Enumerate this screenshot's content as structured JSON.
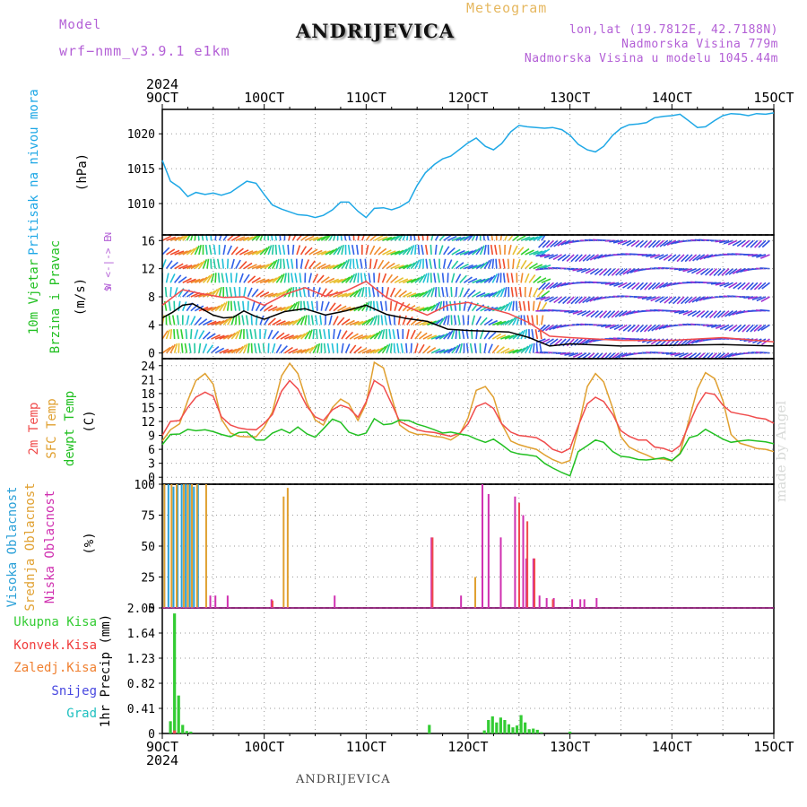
{
  "header": {
    "model_label": "Model",
    "model_name": "wrf−nmm_v3.9.1  e1km",
    "title": "ANDRIJEVICA",
    "meteogram_label": "Meteogram",
    "lonlat": "lon,lat (19.7812E, 42.7188N)",
    "elevation": "Nadmorska Visina 779m",
    "model_elevation": "Nadmorska Visina u modelu 1045.44m"
  },
  "footer": {
    "station": "ANDRIJEVICA",
    "credit": "made by Angel"
  },
  "colors": {
    "pressure": "#1fa8e6",
    "wind_label": "#22c022",
    "temp2m": "#f04c4c",
    "sfc": "#e0a030",
    "dew": "#22c022",
    "high_cloud": "#2aa0d8",
    "mid_cloud": "#e0a030",
    "low_cloud": "#d030b0",
    "precip": "#33cc33",
    "conv": "#f03c3c",
    "freezing": "#f08030",
    "snow": "#4848e0",
    "hail": "#20c0c0",
    "arrow_text": "#b35fd6"
  },
  "x_axis": {
    "top_year": "2024",
    "bottom_year": "2024",
    "ticks": [
      "9OCT",
      "10OCT",
      "11OCT",
      "12OCT",
      "13OCT",
      "14OCT",
      "15OCT"
    ],
    "range_days": [
      9,
      15
    ]
  },
  "chart_data": [
    {
      "type": "line",
      "title": "",
      "ylabel_main": "Pritisak na nivou mora",
      "ylabel_unit": "(hPa)",
      "ylim": [
        1005.5,
        1023.5
      ],
      "yticks": [
        1010,
        1015,
        1020
      ],
      "grid": true,
      "series": [
        {
          "name": "Pritisak na nivou mora",
          "color": "#1fa8e6",
          "x": [
            9.0,
            9.08,
            9.17,
            9.25,
            9.33,
            9.42,
            9.5,
            9.58,
            9.67,
            9.75,
            9.83,
            9.92,
            10.0,
            10.08,
            10.17,
            10.25,
            10.33,
            10.42,
            10.5,
            10.58,
            10.67,
            10.75,
            10.83,
            10.92,
            11.0,
            11.08,
            11.17,
            11.25,
            11.33,
            11.42,
            11.5,
            11.58,
            11.67,
            11.75,
            11.83,
            11.92,
            12.0,
            12.08,
            12.17,
            12.25,
            12.33,
            12.42,
            12.5,
            12.58,
            12.67,
            12.75,
            12.83,
            12.92,
            13.0,
            13.08,
            13.17,
            13.25,
            13.33,
            13.42,
            13.5,
            13.58,
            13.67,
            13.75,
            13.83,
            13.92,
            14.0,
            14.08,
            14.17,
            14.25,
            14.33,
            14.42,
            14.5,
            14.58,
            14.67,
            14.75,
            14.83,
            14.92,
            15.0
          ],
          "y": [
            1016.2,
            1013.2,
            1012.3,
            1011.0,
            1011.6,
            1011.3,
            1011.5,
            1011.2,
            1011.6,
            1012.4,
            1013.2,
            1012.9,
            1011.3,
            1009.8,
            1009.2,
            1008.8,
            1008.4,
            1008.3,
            1008.0,
            1008.3,
            1009.1,
            1010.2,
            1010.2,
            1008.9,
            1008.0,
            1009.3,
            1009.4,
            1009.1,
            1009.5,
            1010.3,
            1012.6,
            1014.4,
            1015.6,
            1016.4,
            1016.8,
            1017.8,
            1018.7,
            1019.4,
            1018.2,
            1017.7,
            1018.6,
            1020.3,
            1021.2,
            1021.0,
            1020.9,
            1020.8,
            1020.9,
            1020.6,
            1019.8,
            1018.5,
            1017.7,
            1017.4,
            1018.2,
            1019.8,
            1020.8,
            1021.3,
            1021.4,
            1021.6,
            1022.3,
            1022.5,
            1022.6,
            1022.8,
            1021.8,
            1020.9,
            1021.0,
            1021.9,
            1022.6,
            1022.9,
            1022.8,
            1022.6,
            1022.9,
            1022.8,
            1023.0
          ]
        }
      ]
    },
    {
      "type": "line",
      "title": "",
      "ylabel_main": [
        "10m Vjetar",
        "Brzina i Pravac"
      ],
      "ylabel_unit": "(m/s)",
      "direction_legend": [
        "N",
        "W <-|-> E",
        "S"
      ],
      "ylim": [
        -0.8,
        16.8
      ],
      "yticks": [
        0,
        4,
        8,
        12,
        16
      ],
      "grid": true,
      "series": [
        {
          "name": "Brzina vjetra",
          "color": "#000000",
          "x": [
            9.0,
            9.1,
            9.2,
            9.3,
            9.4,
            9.5,
            9.6,
            9.7,
            9.8,
            9.9,
            10.0,
            10.2,
            10.4,
            10.6,
            10.8,
            11.0,
            11.2,
            11.4,
            11.6,
            11.8,
            12.0,
            12.2,
            12.4,
            12.6,
            12.8,
            13.0,
            13.5,
            14.0,
            14.5,
            15.0
          ],
          "y": [
            5.0,
            5.8,
            6.8,
            7.0,
            6.2,
            5.4,
            5.0,
            5.1,
            6.0,
            5.3,
            4.8,
            5.9,
            6.3,
            5.4,
            6.0,
            6.8,
            5.5,
            4.9,
            4.5,
            3.4,
            3.2,
            3.1,
            3.0,
            2.2,
            1.0,
            1.3,
            1.0,
            1.1,
            1.2,
            1.0
          ]
        },
        {
          "name": "Udar vjetra",
          "color": "#f04c4c",
          "x": [
            9.0,
            9.2,
            9.4,
            9.6,
            9.8,
            10.0,
            10.2,
            10.4,
            10.6,
            10.8,
            11.0,
            11.2,
            11.4,
            11.6,
            11.8,
            12.0,
            12.2,
            12.4,
            12.6,
            12.8,
            13.0,
            13.5,
            14.0,
            14.5,
            15.0
          ],
          "y": [
            6.8,
            9.0,
            8.4,
            7.9,
            8.0,
            6.8,
            8.3,
            9.3,
            8.1,
            8.8,
            10.2,
            7.9,
            6.6,
            5.4,
            6.8,
            7.2,
            6.4,
            5.6,
            4.3,
            2.4,
            2.2,
            1.8,
            1.8,
            2.2,
            1.6
          ]
        }
      ]
    },
    {
      "type": "line",
      "title": "",
      "ylabel_main": [
        "2m Temp",
        "SFC Temp",
        "dewpt Temp"
      ],
      "ylabel_unit": "(C)",
      "ylim": [
        -1.5,
        25.5
      ],
      "yticks": [
        0,
        3,
        6,
        9,
        12,
        15,
        18,
        21,
        24
      ],
      "grid": true,
      "series": [
        {
          "name": "2m Temp",
          "color": "#f04c4c",
          "x": [
            9.0,
            9.08,
            9.17,
            9.25,
            9.33,
            9.42,
            9.5,
            9.58,
            9.67,
            9.75,
            9.83,
            9.92,
            10.0,
            10.08,
            10.17,
            10.25,
            10.33,
            10.42,
            10.5,
            10.58,
            10.67,
            10.75,
            10.83,
            10.92,
            11.0,
            11.08,
            11.17,
            11.25,
            11.33,
            11.42,
            11.5,
            11.58,
            11.67,
            11.75,
            11.83,
            11.92,
            12.0,
            12.08,
            12.17,
            12.25,
            12.33,
            12.42,
            12.5,
            12.58,
            12.67,
            12.75,
            12.83,
            12.92,
            13.0,
            13.08,
            13.17,
            13.25,
            13.33,
            13.42,
            13.5,
            13.58,
            13.67,
            13.75,
            13.83,
            13.92,
            14.0,
            14.08,
            14.17,
            14.25,
            14.33,
            14.42,
            14.5,
            14.58,
            14.67,
            14.75,
            14.83,
            14.92,
            15.0
          ],
          "y": [
            9.0,
            12.0,
            12.2,
            15.0,
            17.2,
            18.3,
            17.4,
            13.0,
            11.2,
            10.6,
            10.3,
            10.2,
            11.6,
            13.5,
            18.5,
            20.8,
            19.0,
            15.2,
            13.0,
            12.2,
            14.5,
            15.5,
            14.9,
            12.9,
            16.2,
            20.8,
            19.5,
            15.8,
            12.0,
            11.0,
            10.2,
            9.8,
            9.6,
            9.2,
            8.8,
            9.5,
            11.5,
            15.2,
            16.0,
            14.8,
            11.5,
            9.7,
            9.0,
            8.8,
            8.5,
            7.5,
            6.0,
            5.3,
            6.2,
            11.0,
            15.8,
            17.2,
            16.3,
            13.5,
            10.0,
            8.8,
            8.0,
            8.0,
            6.5,
            6.2,
            5.5,
            6.8,
            11.5,
            15.5,
            18.2,
            17.8,
            15.5,
            14.0,
            13.6,
            13.3,
            12.8,
            12.5,
            11.6
          ]
        },
        {
          "name": "SFC Temp",
          "color": "#e0a030",
          "x": [
            9.0,
            9.08,
            9.17,
            9.25,
            9.33,
            9.42,
            9.5,
            9.58,
            9.67,
            9.75,
            9.83,
            9.92,
            10.0,
            10.08,
            10.17,
            10.25,
            10.33,
            10.42,
            10.5,
            10.58,
            10.67,
            10.75,
            10.83,
            10.92,
            11.0,
            11.08,
            11.17,
            11.25,
            11.33,
            11.42,
            11.5,
            11.58,
            11.67,
            11.75,
            11.83,
            11.92,
            12.0,
            12.08,
            12.17,
            12.25,
            12.33,
            12.42,
            12.5,
            12.58,
            12.67,
            12.75,
            12.83,
            12.92,
            13.0,
            13.08,
            13.17,
            13.25,
            13.33,
            13.42,
            13.5,
            13.58,
            13.67,
            13.75,
            13.83,
            13.92,
            14.0,
            14.08,
            14.17,
            14.25,
            14.33,
            14.42,
            14.5,
            14.58,
            14.67,
            14.75,
            14.83,
            14.92,
            15.0
          ],
          "y": [
            7.8,
            10.2,
            11.5,
            16.5,
            20.8,
            22.3,
            20.0,
            12.5,
            9.5,
            8.8,
            8.7,
            8.7,
            10.8,
            14.0,
            21.8,
            24.5,
            22.3,
            16.0,
            12.3,
            11.2,
            15.0,
            16.8,
            15.8,
            12.2,
            15.8,
            24.7,
            23.5,
            17.2,
            11.2,
            9.8,
            9.2,
            9.2,
            8.8,
            8.6,
            8.0,
            9.3,
            12.8,
            18.7,
            19.5,
            17.2,
            11.5,
            7.8,
            7.0,
            6.5,
            6.0,
            4.8,
            3.8,
            3.0,
            3.6,
            10.5,
            19.5,
            22.3,
            20.5,
            14.8,
            8.7,
            6.5,
            5.5,
            4.8,
            4.0,
            3.9,
            3.5,
            5.2,
            12.5,
            19.0,
            22.5,
            21.2,
            16.5,
            9.2,
            7.3,
            6.8,
            6.2,
            6.0,
            5.5
          ]
        },
        {
          "name": "dewpt Temp",
          "color": "#22c022",
          "x": [
            9.0,
            9.08,
            9.17,
            9.25,
            9.33,
            9.42,
            9.5,
            9.58,
            9.67,
            9.75,
            9.83,
            9.92,
            10.0,
            10.08,
            10.17,
            10.25,
            10.33,
            10.42,
            10.5,
            10.58,
            10.67,
            10.75,
            10.83,
            10.92,
            11.0,
            11.08,
            11.17,
            11.25,
            11.33,
            11.42,
            11.5,
            11.58,
            11.67,
            11.75,
            11.83,
            11.92,
            12.0,
            12.08,
            12.17,
            12.25,
            12.33,
            12.42,
            12.5,
            12.58,
            12.67,
            12.75,
            12.83,
            12.92,
            13.0,
            13.08,
            13.17,
            13.25,
            13.33,
            13.42,
            13.5,
            13.58,
            13.67,
            13.75,
            13.83,
            13.92,
            14.0,
            14.08,
            14.17,
            14.25,
            14.33,
            14.42,
            14.5,
            14.58,
            14.67,
            14.75,
            14.83,
            14.92,
            15.0
          ],
          "y": [
            7.0,
            9.2,
            9.3,
            10.3,
            10.0,
            10.2,
            9.8,
            9.2,
            8.7,
            9.6,
            9.7,
            8.0,
            8.0,
            9.5,
            10.3,
            9.5,
            10.8,
            9.3,
            8.6,
            10.4,
            12.5,
            11.8,
            9.7,
            9.0,
            9.5,
            12.6,
            11.3,
            11.5,
            12.3,
            12.2,
            11.4,
            10.9,
            10.2,
            9.5,
            9.7,
            9.3,
            9.0,
            8.2,
            7.5,
            8.2,
            7.0,
            5.5,
            5.0,
            4.8,
            4.5,
            3.0,
            2.0,
            1.0,
            0.3,
            5.5,
            6.8,
            8.0,
            7.5,
            5.5,
            4.5,
            4.3,
            3.8,
            3.7,
            3.9,
            4.2,
            3.6,
            5.0,
            8.5,
            9.0,
            10.3,
            9.2,
            8.2,
            7.5,
            7.8,
            8.0,
            7.8,
            7.6,
            7.2
          ]
        }
      ]
    },
    {
      "type": "bar",
      "title": "",
      "ylabel_main": [
        "Visoka Oblacnost",
        "Srednja Oblacnost",
        "Niska Oblacnost"
      ],
      "ylabel_unit": "(%)",
      "ylim": [
        0,
        100
      ],
      "yticks": [
        0,
        25,
        50,
        75,
        100
      ],
      "grid": true,
      "series": [
        {
          "name": "Visoka Oblacnost",
          "color": "#2aa0d8",
          "x": [
            9.02,
            9.06,
            9.11,
            9.15,
            9.19,
            9.23,
            9.27,
            9.31,
            9.35
          ],
          "values": [
            100,
            100,
            98,
            100,
            100,
            100,
            100,
            98,
            100
          ]
        },
        {
          "name": "Srednja Oblacnost",
          "color": "#e0a030",
          "x": [
            9.01,
            9.08,
            9.13,
            9.2,
            9.24,
            9.28,
            9.33,
            9.42,
            10.18,
            10.22,
            12.06
          ],
          "values": [
            100,
            100,
            100,
            100,
            100,
            100,
            100,
            100,
            90,
            97,
            25
          ]
        },
        {
          "name": "Niska Oblacnost",
          "color": "#d030b0",
          "x": [
            9.45,
            9.5,
            9.62,
            10.05,
            10.67,
            11.62,
            11.91,
            12.12,
            12.18,
            12.3,
            12.44,
            12.52,
            12.55,
            12.62,
            12.68,
            12.75,
            12.82,
            13.0,
            13.08,
            13.12,
            13.24
          ],
          "values": [
            10,
            10,
            10,
            7,
            10,
            57,
            10,
            100,
            92,
            57,
            90,
            75,
            40,
            40,
            10,
            8,
            8,
            7,
            7,
            7,
            8
          ]
        },
        {
          "name": "Konvek. (crveno)",
          "color": "#f04c4c",
          "x": [
            10.05,
            11.62,
            12.47,
            12.55,
            12.62,
            12.8
          ],
          "values": [
            6,
            57,
            85,
            70,
            40,
            7
          ]
        }
      ]
    },
    {
      "type": "bar",
      "title": "",
      "ylabel_main": "1hr Precip",
      "ylabel_unit": "(mm)",
      "legend": [
        "Ukupna Kisa",
        "Konvek.Kisa",
        "Zaledj.Kisa",
        "Snijeg",
        "Grad"
      ],
      "ylim": [
        0,
        2.05
      ],
      "yticks": [
        0,
        0.41,
        0.82,
        1.23,
        1.64,
        2.05
      ],
      "grid": true,
      "series": [
        {
          "name": "Ukupna Kisa",
          "color": "#33cc33",
          "x": [
            9.08,
            9.12,
            9.16,
            9.2,
            9.24,
            9.28,
            11.62,
            12.16,
            12.2,
            12.24,
            12.28,
            12.32,
            12.36,
            12.4,
            12.44,
            12.48,
            12.52,
            12.56,
            12.6,
            12.64,
            12.68,
            12.72,
            13.0
          ],
          "values": [
            0.2,
            1.96,
            0.62,
            0.14,
            0.04,
            0.03,
            0.14,
            0.05,
            0.22,
            0.28,
            0.18,
            0.26,
            0.22,
            0.15,
            0.1,
            0.13,
            0.3,
            0.18,
            0.07,
            0.08,
            0.06,
            0.02,
            0.03
          ]
        },
        {
          "name": "Konvek.Kisa",
          "color": "#f04c4c",
          "x": [
            9.12
          ],
          "values": [
            0.05
          ]
        }
      ]
    }
  ]
}
